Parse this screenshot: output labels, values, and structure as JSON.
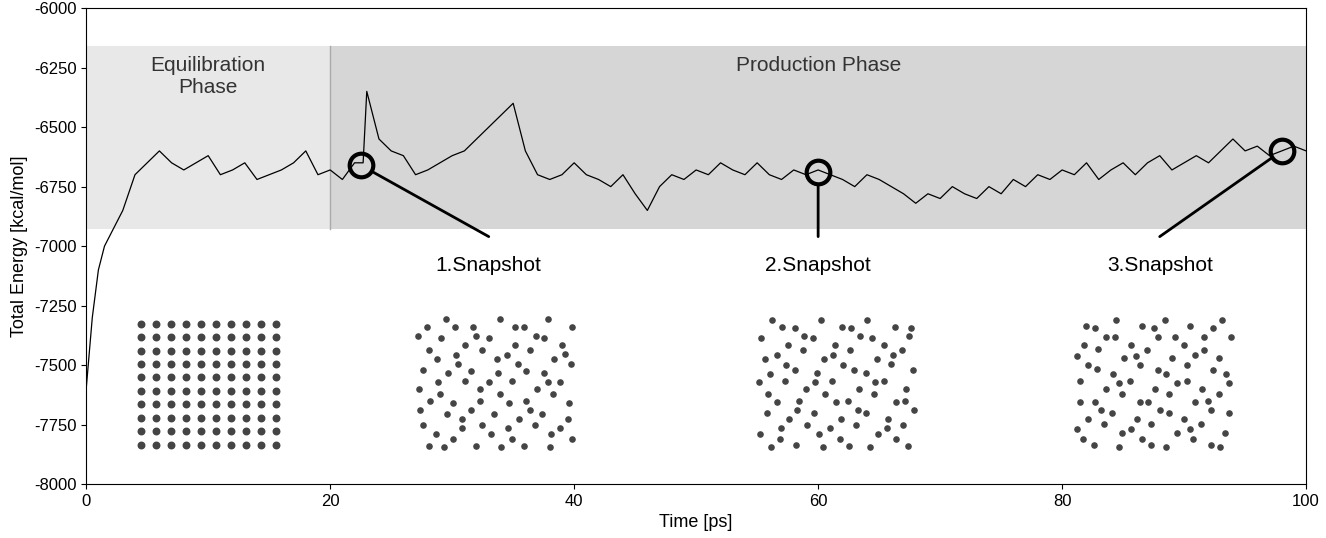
{
  "chart_data": {
    "type": "line",
    "x_label": "Time [ps]",
    "y_label": "Total Energy [kcal/mol]",
    "xlim": [
      0,
      100
    ],
    "ylim": [
      -8000,
      -6000
    ],
    "xticks": [
      0,
      20,
      40,
      60,
      80,
      100
    ],
    "yticks": [
      -8000,
      -7750,
      -7500,
      -7250,
      -7000,
      -6750,
      -6500,
      -6250,
      -6000
    ],
    "grid": false,
    "series": [
      {
        "name": "Total Energy",
        "color": "#000000",
        "x": [
          0,
          0.5,
          1,
          1.5,
          2,
          3,
          4,
          5,
          6,
          7,
          8,
          9,
          10,
          11,
          12,
          13,
          14,
          15,
          16,
          17,
          18,
          19,
          20,
          21,
          22,
          22.7,
          23,
          24,
          25,
          26,
          27,
          28,
          29,
          30,
          31,
          32,
          33,
          34,
          35,
          36,
          37,
          38,
          39,
          40,
          41,
          42,
          43,
          44,
          45,
          46,
          47,
          48,
          49,
          50,
          51,
          52,
          53,
          54,
          55,
          56,
          57,
          58,
          59,
          60,
          61,
          62,
          63,
          64,
          65,
          66,
          67,
          68,
          69,
          70,
          71,
          72,
          73,
          74,
          75,
          76,
          77,
          78,
          79,
          80,
          81,
          82,
          83,
          84,
          85,
          86,
          87,
          88,
          89,
          90,
          91,
          92,
          93,
          94,
          95,
          96,
          97,
          98,
          99,
          100
        ],
        "values": [
          -7600,
          -7300,
          -7100,
          -7000,
          -6950,
          -6850,
          -6700,
          -6650,
          -6600,
          -6650,
          -6680,
          -6650,
          -6620,
          -6700,
          -6680,
          -6650,
          -6720,
          -6700,
          -6680,
          -6650,
          -6600,
          -6700,
          -6680,
          -6720,
          -6650,
          -6650,
          -6350,
          -6550,
          -6600,
          -6620,
          -6700,
          -6680,
          -6650,
          -6620,
          -6600,
          -6550,
          -6500,
          -6450,
          -6400,
          -6600,
          -6700,
          -6720,
          -6700,
          -6650,
          -6700,
          -6720,
          -6750,
          -6700,
          -6780,
          -6850,
          -6750,
          -6700,
          -6720,
          -6680,
          -6700,
          -6650,
          -6680,
          -6700,
          -6650,
          -6700,
          -6720,
          -6680,
          -6700,
          -6680,
          -6700,
          -6720,
          -6750,
          -6700,
          -6720,
          -6750,
          -6780,
          -6820,
          -6780,
          -6800,
          -6750,
          -6780,
          -6800,
          -6750,
          -6780,
          -6720,
          -6750,
          -6700,
          -6720,
          -6680,
          -6700,
          -6650,
          -6720,
          -6680,
          -6650,
          -6700,
          -6650,
          -6620,
          -6680,
          -6650,
          -6620,
          -6650,
          -6600,
          -6550,
          -6600,
          -6580,
          -6620,
          -6600,
          -6580,
          -6600
        ]
      }
    ],
    "regions": [
      {
        "label": "Equilibration\nPhase",
        "x": [
          0,
          20
        ],
        "y": [
          -6930,
          -6160
        ]
      },
      {
        "label": "Production Phase",
        "x": [
          20,
          100
        ],
        "y": [
          -6930,
          -6160
        ]
      }
    ],
    "annotations": [
      {
        "label": "1.Snapshot",
        "x": 22.5,
        "y": -6660
      },
      {
        "label": "2.Snapshot",
        "x": 60,
        "y": -6690
      },
      {
        "label": "3.Snapshot",
        "x": 98,
        "y": -6600
      }
    ]
  }
}
